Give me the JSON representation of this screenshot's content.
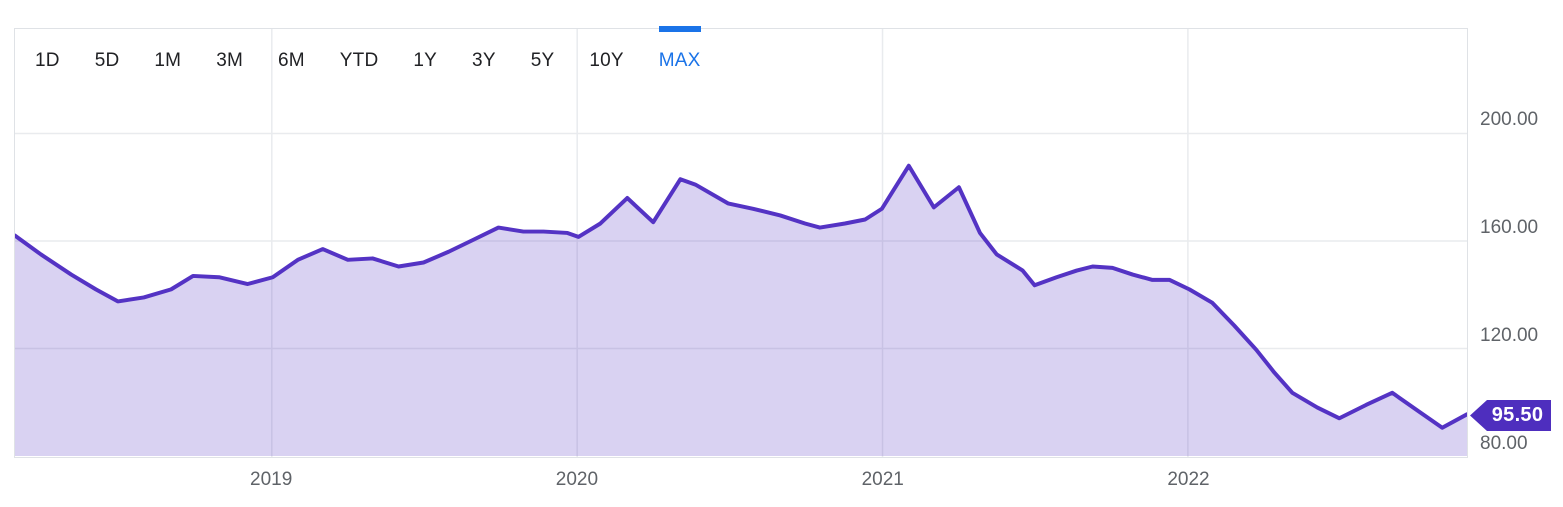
{
  "toolbar": {
    "ranges": [
      {
        "label": "1D",
        "active": false
      },
      {
        "label": "5D",
        "active": false
      },
      {
        "label": "1M",
        "active": false
      },
      {
        "label": "3M",
        "active": false
      },
      {
        "label": "6M",
        "active": false
      },
      {
        "label": "YTD",
        "active": false
      },
      {
        "label": "1Y",
        "active": false
      },
      {
        "label": "3Y",
        "active": false
      },
      {
        "label": "5Y",
        "active": false
      },
      {
        "label": "10Y",
        "active": false
      },
      {
        "label": "MAX",
        "active": true
      }
    ]
  },
  "chart_data": {
    "type": "area",
    "title": "",
    "xlabel": "",
    "ylabel": "",
    "grid": true,
    "x_range": [
      2018.159,
      2022.914
    ],
    "y_range": [
      79.6,
      238.9
    ],
    "x_ticks": [
      {
        "value": 2019,
        "label": "2019"
      },
      {
        "value": 2020,
        "label": "2020"
      },
      {
        "value": 2021,
        "label": "2021"
      },
      {
        "value": 2022,
        "label": "2022"
      }
    ],
    "y_ticks": [
      {
        "value": 200,
        "label": "200.00"
      },
      {
        "value": 160,
        "label": "160.00"
      },
      {
        "value": 120,
        "label": "120.00"
      },
      {
        "value": 80,
        "label": "80.00"
      }
    ],
    "current_price": "95.50",
    "current_price_value": 95.5,
    "series": [
      {
        "name": "price",
        "x_unit": "decimal-year",
        "points": [
          [
            2018.159,
            162
          ],
          [
            2018.244,
            155
          ],
          [
            2018.343,
            147.5
          ],
          [
            2018.424,
            142
          ],
          [
            2018.496,
            137.5
          ],
          [
            2018.581,
            139
          ],
          [
            2018.67,
            142
          ],
          [
            2018.742,
            147
          ],
          [
            2018.827,
            146.5
          ],
          [
            2018.921,
            144
          ],
          [
            2019.003,
            146.5
          ],
          [
            2019.085,
            153
          ],
          [
            2019.167,
            157
          ],
          [
            2019.249,
            153
          ],
          [
            2019.33,
            153.5
          ],
          [
            2019.415,
            150.5
          ],
          [
            2019.497,
            152
          ],
          [
            2019.579,
            156
          ],
          [
            2019.661,
            160.5
          ],
          [
            2019.742,
            165
          ],
          [
            2019.824,
            163.5
          ],
          [
            2019.89,
            163.5
          ],
          [
            2019.968,
            163
          ],
          [
            2020.004,
            161.5
          ],
          [
            2020.076,
            166.5
          ],
          [
            2020.164,
            176
          ],
          [
            2020.249,
            167
          ],
          [
            2020.338,
            183
          ],
          [
            2020.387,
            181
          ],
          [
            2020.494,
            174
          ],
          [
            2020.576,
            172
          ],
          [
            2020.665,
            169.5
          ],
          [
            2020.746,
            166.5
          ],
          [
            2020.795,
            165
          ],
          [
            2020.877,
            166.5
          ],
          [
            2020.943,
            168
          ],
          [
            2020.998,
            172
          ],
          [
            2021.086,
            188
          ],
          [
            2021.168,
            172.5
          ],
          [
            2021.25,
            180
          ],
          [
            2021.319,
            163
          ],
          [
            2021.374,
            155
          ],
          [
            2021.459,
            149
          ],
          [
            2021.498,
            143.5
          ],
          [
            2021.57,
            146.5
          ],
          [
            2021.636,
            149
          ],
          [
            2021.688,
            150.5
          ],
          [
            2021.753,
            150
          ],
          [
            2021.819,
            147.5
          ],
          [
            2021.884,
            145.5
          ],
          [
            2021.94,
            145.5
          ],
          [
            2022.005,
            142
          ],
          [
            2022.08,
            137
          ],
          [
            2022.152,
            128.5
          ],
          [
            2022.224,
            119.5
          ],
          [
            2022.283,
            111
          ],
          [
            2022.342,
            103.5
          ],
          [
            2022.424,
            98
          ],
          [
            2022.496,
            94
          ],
          [
            2022.584,
            99
          ],
          [
            2022.669,
            103.5
          ],
          [
            2022.757,
            96.5
          ],
          [
            2022.833,
            90.5
          ],
          [
            2022.914,
            95.5
          ]
        ]
      }
    ]
  },
  "colors": {
    "accent_blue": "#1a73e8",
    "line_purple": "#5433c4",
    "fill_purple": "rgba(84,51,196,0.22)",
    "tag_purple": "#4e2ebe",
    "axis_text": "#5f6368",
    "tab_text": "#202124",
    "gridline": "#e9ebee",
    "border": "#dfe2e6"
  }
}
